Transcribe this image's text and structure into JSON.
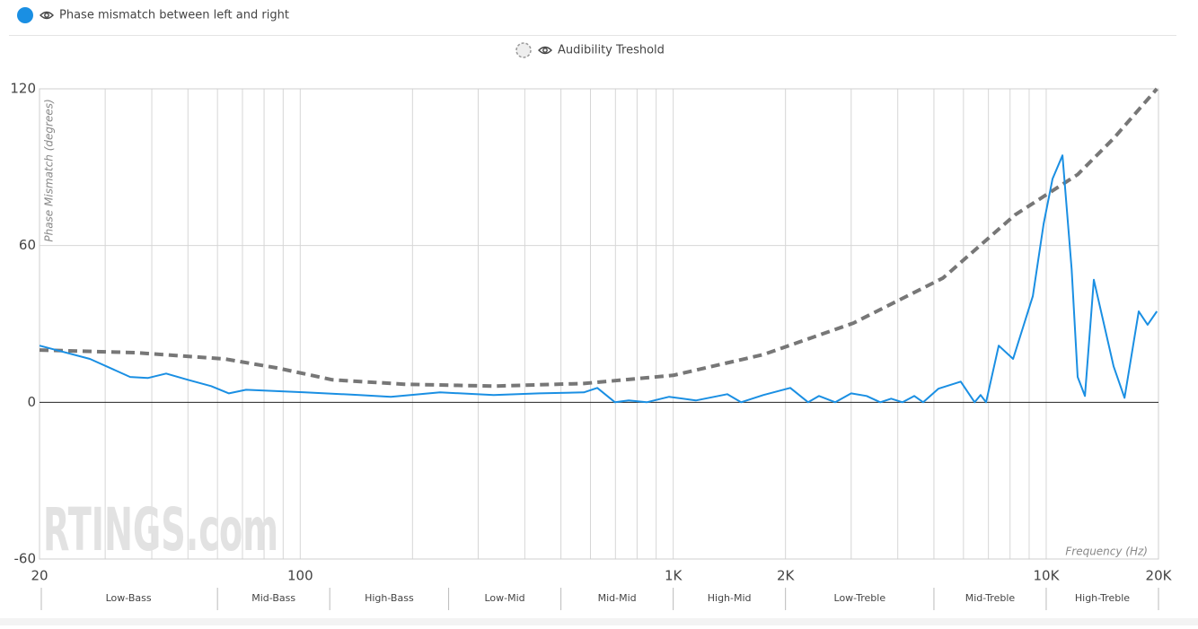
{
  "chart_data": {
    "type": "line",
    "xscale": "log",
    "xlim": [
      20,
      20000
    ],
    "ylim": [
      -60,
      120
    ],
    "xticks": [
      20,
      100,
      {
        "value": 1000,
        "label": "1K"
      },
      {
        "value": 2000,
        "label": "2K"
      },
      {
        "value": 10000,
        "label": "10K"
      },
      {
        "value": 20000,
        "label": "20K"
      }
    ],
    "minor_xticks": [
      30,
      40,
      50,
      60,
      70,
      80,
      90,
      200,
      300,
      400,
      500,
      600,
      700,
      800,
      900,
      3000,
      4000,
      5000,
      6000,
      7000,
      8000,
      9000
    ],
    "yticks": [
      -60,
      0,
      60,
      120
    ],
    "grid": true,
    "ylabel": "Phase Mismatch (degrees)",
    "xlabel": "Frequency (Hz)",
    "watermark": "RTINGS.com",
    "band_edges": [
      20,
      60,
      120,
      250,
      500,
      1000,
      2000,
      5000,
      10000,
      20000
    ],
    "band_labels": [
      "Low-Bass",
      "Mid-Bass",
      "High-Bass",
      "Low-Mid",
      "Mid-Mid",
      "High-Mid",
      "Low-Treble",
      "Mid-Treble",
      "High-Treble"
    ],
    "series": [
      {
        "name": "Phase mismatch between left and right",
        "color": "#1a8fe3",
        "dashed": false,
        "x": [
          20,
          27.3,
          35,
          39,
          43.7,
          50,
          57.7,
          64.4,
          71.6,
          103,
          144,
          175,
          237,
          330,
          437,
          576,
          626,
          698,
          760,
          849,
          975,
          1150,
          1396,
          1520,
          1746,
          2060,
          2300,
          2460,
          2720,
          3000,
          3300,
          3590,
          3840,
          4120,
          4430,
          4680,
          5140,
          5900,
          6430,
          6670,
          6900,
          7460,
          8150,
          9210,
          9840,
          10400,
          11060,
          11700,
          12140,
          12700,
          13420,
          15160,
          16220,
          17700,
          18700,
          19800
        ],
        "values": [
          21.7,
          16.6,
          9.7,
          9.3,
          11,
          8.6,
          6.2,
          3.4,
          4.8,
          3.8,
          2.8,
          2.1,
          3.8,
          2.8,
          3.4,
          3.8,
          5.5,
          0,
          0.7,
          0,
          2.1,
          0.7,
          3.1,
          0,
          2.8,
          5.5,
          0,
          2.4,
          0,
          3.4,
          2.4,
          0,
          1.4,
          0,
          2.4,
          0,
          5.2,
          7.9,
          0,
          2.8,
          0,
          21.7,
          16.6,
          40.7,
          68.3,
          85.5,
          94.5,
          51,
          9.7,
          2.4,
          46.9,
          13.8,
          1.7,
          34.8,
          29.7,
          34.8
        ]
      },
      {
        "name": "Audibility Treshold",
        "color": "#777777",
        "dashed": true,
        "x": [
          20,
          36,
          62.7,
          87,
          122,
          190,
          330,
          576,
          1000,
          1746,
          3040,
          5290,
          8240,
          12140,
          15160,
          19800
        ],
        "values": [
          20,
          19,
          16.6,
          13.1,
          8.6,
          6.9,
          6.2,
          7.2,
          10.3,
          18.3,
          30.3,
          47.6,
          71.7,
          87.2,
          101,
          120
        ]
      }
    ]
  }
}
